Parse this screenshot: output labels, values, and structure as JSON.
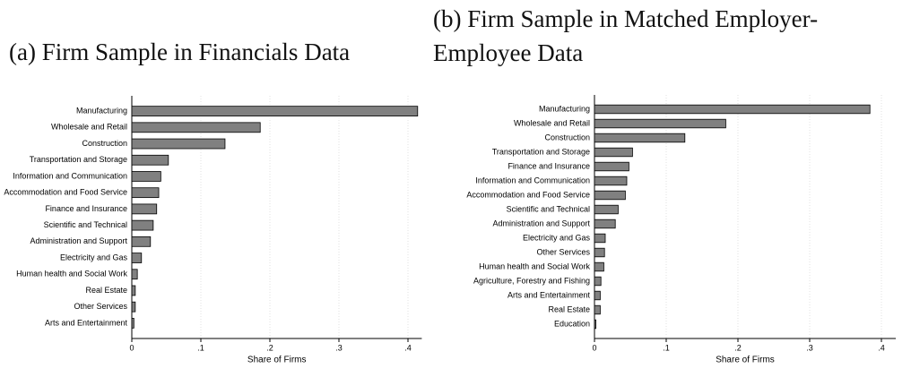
{
  "chart_data": [
    {
      "type": "bar",
      "orientation": "horizontal",
      "title": "(a) Firm Sample in Financials Data",
      "categories": [
        "Manufacturing",
        "Wholesale and Retail",
        "Construction",
        "Transportation and Storage",
        "Information and Communication",
        "Accommodation and Food Service",
        "Finance and Insurance",
        "Scientific and Technical",
        "Administration and Support",
        "Electricity and Gas",
        "Human health and Social Work",
        "Real Estate",
        "Other Services",
        "Arts and Entertainment"
      ],
      "values": [
        0.414,
        0.186,
        0.135,
        0.053,
        0.042,
        0.039,
        0.036,
        0.031,
        0.027,
        0.014,
        0.008,
        0.005,
        0.005,
        0.003
      ],
      "color": "#808080",
      "xlabel": "Share of Firms",
      "xlim": [
        0,
        0.42
      ],
      "xticks": [
        0,
        {
          "value": 0.1,
          "label": ".1"
        },
        {
          "value": 0.2,
          "label": ".2"
        },
        {
          "value": 0.3,
          "label": ".3"
        },
        {
          "value": 0.4,
          "label": ".4"
        }
      ],
      "grid": true
    },
    {
      "type": "bar",
      "orientation": "horizontal",
      "title": "(b) Firm Sample in Matched Employer-Employee Data",
      "categories": [
        "Manufacturing",
        "Wholesale and Retail",
        "Construction",
        "Transportation and Storage",
        "Finance and Insurance",
        "Information and Communication",
        "Accommodation and Food Service",
        "Scientific and Technical",
        "Administration and Support",
        "Electricity and Gas",
        "Other Services",
        "Human health and Social Work",
        "Agriculture, Forestry and Fishing",
        "Arts and Entertainment",
        "Real Estate",
        "Education"
      ],
      "values": [
        0.384,
        0.183,
        0.126,
        0.053,
        0.048,
        0.045,
        0.043,
        0.033,
        0.029,
        0.015,
        0.014,
        0.013,
        0.009,
        0.008,
        0.008,
        0.002
      ],
      "color": "#808080",
      "xlabel": "Share of Firms",
      "xlim": [
        0,
        0.42
      ],
      "xticks": [
        0,
        {
          "value": 0.1,
          "label": ".1"
        },
        {
          "value": 0.2,
          "label": ".2"
        },
        {
          "value": 0.3,
          "label": ".3"
        },
        {
          "value": 0.4,
          "label": ".4"
        }
      ],
      "grid": true
    }
  ]
}
